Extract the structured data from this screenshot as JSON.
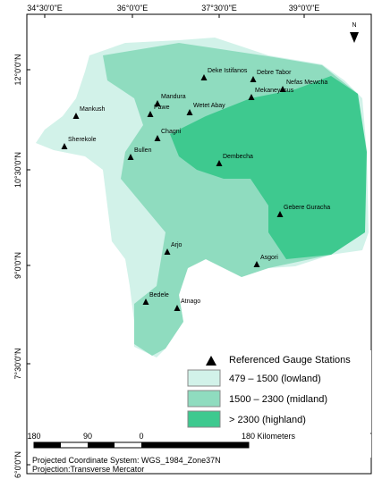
{
  "graticule": {
    "top": [
      "34°30'0\"E",
      "36°0'0\"E",
      "37°30'0\"E",
      "39°0'0\"E"
    ],
    "left": [
      "12°0'0\"N",
      "10°30'0\"N",
      "9°0'0\"N",
      "7°30'0\"N",
      "6°0'0\"N"
    ]
  },
  "north_arrow": "N",
  "stations": [
    "Deke Istifanos",
    "Debre Tabor",
    "Nefas Mewcha",
    "Mekaneyesus",
    "Mandura",
    "Wetet Abay",
    "Pawe",
    "Mankush",
    "Chagni",
    "Sherekole",
    "Bullen",
    "Dembecha",
    "Gebere Guracha",
    "Arjo",
    "Asgori",
    "Bedele",
    "Atnago"
  ],
  "legend": {
    "stations": "Referenced Gauge Stations",
    "classes": [
      "479 – 1500 (lowland)",
      "1500 – 2300 (midland)",
      "> 2300 (highland)"
    ]
  },
  "scale_bar": {
    "labels": [
      180,
      90,
      0
    ],
    "end_label": "180 Kilometers"
  },
  "footer": [
    "Projected Coordinate System: WGS_1984_Zone37N",
    "Projection:Transverse Mercator"
  ]
}
